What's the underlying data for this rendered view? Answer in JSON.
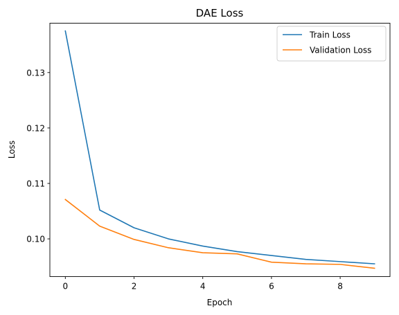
{
  "chart_data": {
    "type": "line",
    "title": "DAE Loss",
    "xlabel": "Epoch",
    "ylabel": "Loss",
    "xlim": [
      -0.45,
      9.45
    ],
    "ylim": [
      0.0932,
      0.1389
    ],
    "xticks": [
      0,
      2,
      4,
      6,
      8
    ],
    "xtick_labels": [
      "0",
      "2",
      "4",
      "6",
      "8"
    ],
    "yticks": [
      0.1,
      0.11,
      0.12,
      0.13
    ],
    "ytick_labels": [
      "0.10",
      "0.11",
      "0.12",
      "0.13"
    ],
    "grid": false,
    "legend_position": "top-right",
    "x": [
      0,
      1,
      2,
      3,
      4,
      5,
      6,
      7,
      8,
      9
    ],
    "series": [
      {
        "name": "Train Loss",
        "color": "#1f77b4",
        "values": [
          0.1375,
          0.1052,
          0.102,
          0.1,
          0.0987,
          0.0977,
          0.097,
          0.0963,
          0.0959,
          0.0955
        ]
      },
      {
        "name": "Validation Loss",
        "color": "#ff7f0e",
        "values": [
          0.1071,
          0.1023,
          0.0999,
          0.0984,
          0.0975,
          0.0973,
          0.0958,
          0.0955,
          0.0954,
          0.0947
        ]
      }
    ]
  }
}
